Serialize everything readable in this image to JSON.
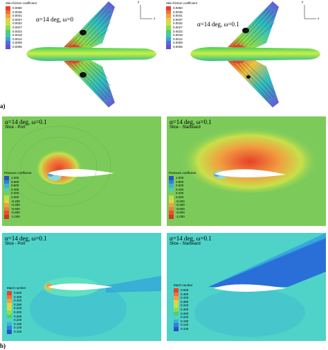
{
  "part_a": {
    "label": "a)",
    "left": {
      "legend_title": "Skin-friction coefficient",
      "legend_values": [
        "0.0050",
        "0.0046",
        "0.0041",
        "0.0037",
        "0.0032",
        "0.0027",
        "0.0023",
        "0.0018",
        "0.0014",
        "0.0009",
        "0.0005"
      ],
      "condition": "α=14 deg, ω=0"
    },
    "right": {
      "legend_title": "Skin-friction coefficient",
      "legend_values": [
        "0.0050",
        "0.0046",
        "0.0041",
        "0.0037",
        "0.0032",
        "0.0027",
        "0.0023",
        "0.0018",
        "0.0014",
        "0.0009",
        "0.0005"
      ],
      "condition": "α=14 deg, ω=0.1"
    },
    "axes": {
      "y": "y",
      "x": "x"
    }
  },
  "part_b": {
    "label": "b)",
    "pressure_legend": {
      "title": "Pressure coefficient",
      "values": [
        "1.000",
        "0.800",
        "0.600",
        "0.400",
        "0.200",
        "0.000",
        "-0.200",
        "-0.400",
        "-0.600",
        "-0.800",
        "-1.000"
      ]
    },
    "mach_legend": {
      "title": "Mach number",
      "values": [
        "0.500",
        "0.460",
        "0.420",
        "0.380",
        "0.340",
        "0.300",
        "0.260",
        "0.220",
        "0.180",
        "0.140",
        "0.100"
      ]
    },
    "panels": [
      {
        "condition": "α=14 deg, ω=0.1",
        "slice": "Slice - Port"
      },
      {
        "condition": "α=14 deg, ω=0.1",
        "slice": "Slice - Starboard"
      },
      {
        "condition": "α=14 deg, ω=0.1",
        "slice": "Slice - Port"
      },
      {
        "condition": "α=14 deg, ω=0.1",
        "slice": "Slice - Starboard"
      }
    ]
  },
  "colors": {
    "pressure_green": "#7ccb5a",
    "mach_cyan": "#4fd3c8",
    "red": "#e8402a",
    "purple": "#6b4bd8",
    "blue": "#2a6fd8"
  }
}
